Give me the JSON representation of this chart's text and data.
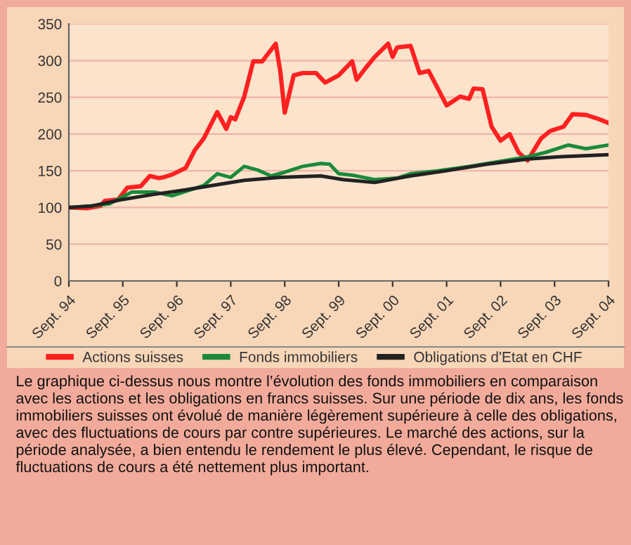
{
  "chart_data": {
    "type": "line",
    "ylim": [
      0,
      350
    ],
    "yticks": [
      0,
      50,
      100,
      150,
      200,
      250,
      300,
      350
    ],
    "xlim": [
      "1994-09",
      "2004-09"
    ],
    "xticks": [
      {
        "value": "1994-09",
        "label": "Sept. 94"
      },
      {
        "value": "1995-09",
        "label": "Sept. 95"
      },
      {
        "value": "1996-09",
        "label": "Sept. 96"
      },
      {
        "value": "1997-09",
        "label": "Sept. 97"
      },
      {
        "value": "1998-09",
        "label": "Sept. 98"
      },
      {
        "value": "1999-09",
        "label": "Sept. 99"
      },
      {
        "value": "2000-09",
        "label": "Sept. 00"
      },
      {
        "value": "2001-09",
        "label": "Sept. 01"
      },
      {
        "value": "2002-09",
        "label": "Sept. 02"
      },
      {
        "value": "2003-09",
        "label": "Sept. 03"
      },
      {
        "value": "2004-09",
        "label": "Sept. 04"
      }
    ],
    "grid": "y",
    "legend": "bottom",
    "marker": "none",
    "line_style": "solid",
    "series": [
      {
        "name": "Actions suisses",
        "color": "#ff2020",
        "x": [
          "1994-09",
          "1995-01",
          "1995-04",
          "1995-05",
          "1995-08",
          "1995-10",
          "1996-01",
          "1996-03",
          "1996-05",
          "1996-06",
          "1996-08",
          "1996-11",
          "1997-01",
          "1997-03",
          "1997-06",
          "1997-08",
          "1997-09",
          "1997-10",
          "1997-12",
          "1998-02",
          "1998-04",
          "1998-07",
          "1998-08",
          "1998-09",
          "1998-11",
          "1999-01",
          "1999-04",
          "1999-06",
          "1999-09",
          "1999-12",
          "2000-01",
          "2000-03",
          "2000-05",
          "2000-08",
          "2000-09",
          "2000-10",
          "2001-01",
          "2001-03",
          "2001-05",
          "2001-09",
          "2001-12",
          "2002-02",
          "2002-03",
          "2002-05",
          "2002-07",
          "2002-09",
          "2002-11",
          "2003-01",
          "2003-03",
          "2003-06",
          "2003-08",
          "2003-11",
          "2004-01",
          "2004-04",
          "2004-07",
          "2004-09"
        ],
        "values": [
          100,
          99,
          102,
          109,
          111,
          127,
          129,
          143,
          140,
          141,
          145,
          154,
          178,
          194,
          230,
          207,
          223,
          220,
          251,
          299,
          299,
          323,
          286,
          229,
          280,
          283,
          283,
          270,
          280,
          299,
          274,
          290,
          305,
          323,
          305,
          318,
          320,
          283,
          286,
          239,
          251,
          248,
          262,
          261,
          210,
          191,
          200,
          175,
          164,
          194,
          204,
          210,
          227,
          226,
          220,
          215
        ]
      },
      {
        "name": "Fonds immobiliers",
        "color": "#1a8a3a",
        "x": [
          "1994-09",
          "1995-02",
          "1995-06",
          "1995-11",
          "1996-04",
          "1996-08",
          "1996-12",
          "1997-03",
          "1997-06",
          "1997-09",
          "1997-12",
          "1998-03",
          "1998-06",
          "1998-09",
          "1999-01",
          "1999-05",
          "1999-07",
          "1999-09",
          "1999-12",
          "2000-05",
          "2000-10",
          "2001-01",
          "2001-07",
          "2002-02",
          "2002-08",
          "2003-03",
          "2003-07",
          "2003-12",
          "2004-04",
          "2004-09"
        ],
        "values": [
          100,
          102,
          105,
          121,
          121,
          116,
          124,
          130,
          146,
          141,
          156,
          151,
          143,
          148,
          156,
          160,
          159,
          146,
          144,
          138,
          140,
          146,
          150,
          156,
          162,
          169,
          175,
          185,
          180,
          185
        ]
      },
      {
        "name": "Obligations d'Etat en CHF",
        "color": "#222222",
        "x": [
          "1994-09",
          "1995-02",
          "1995-09",
          "1996-04",
          "1996-11",
          "1997-05",
          "1997-12",
          "1998-08",
          "1999-05",
          "1999-10",
          "2000-05",
          "2001-01",
          "2001-09",
          "2002-06",
          "2003-03",
          "2003-10",
          "2004-09"
        ],
        "values": [
          100,
          102,
          111,
          118,
          124,
          130,
          137,
          141,
          143,
          138,
          134,
          143,
          150,
          159,
          166,
          169,
          172
        ]
      }
    ],
    "annotations": [
      "Le graphique ci-dessus nous montre l’évolution des fonds immobiliers en comparaison avec les actions et les obligations en francs suisses. Sur une période de dix ans, les fonds immobiliers suisses ont évolué de manière légèrement supérieure à celle des obligations, avec des fluctuations de cours par contre supérieures. Le marché des actions, sur la période analysée, a bien entendu le rendement le plus élevé. Cependant, le risque de fluctuations de cours a été nettement plus important."
    ]
  }
}
